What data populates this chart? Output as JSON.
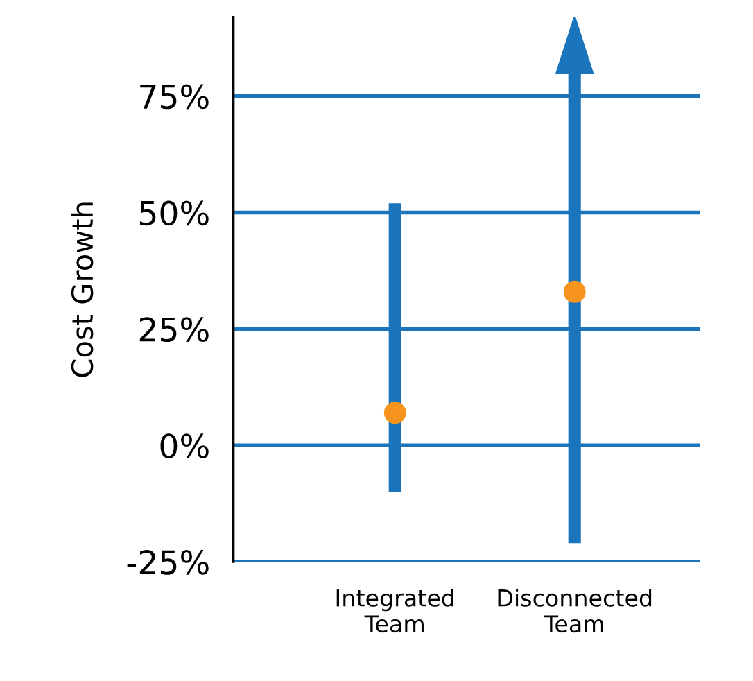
{
  "chart_data": {
    "type": "bar",
    "ylabel": "Cost Growth",
    "categories": [
      "Integrated\nTeam",
      "Disconnected\nTeam"
    ],
    "series": [
      {
        "color": "#1a75bc",
        "values": [
          62,
          101
        ],
        "base": [
          -10,
          -21
        ]
      },
      {
        "type": "scatter",
        "color": "#f7941d",
        "values": [
          7,
          33
        ]
      }
    ],
    "ylim": [
      -25,
      92
    ],
    "yticks": [
      {
        "value": -25,
        "label": "-25%"
      },
      {
        "value": 0,
        "label": "0%"
      },
      {
        "value": 25,
        "label": "25%"
      },
      {
        "value": 50,
        "label": "50%"
      },
      {
        "value": 75,
        "label": "75%"
      }
    ],
    "grid": "y",
    "marker": "circle"
  }
}
